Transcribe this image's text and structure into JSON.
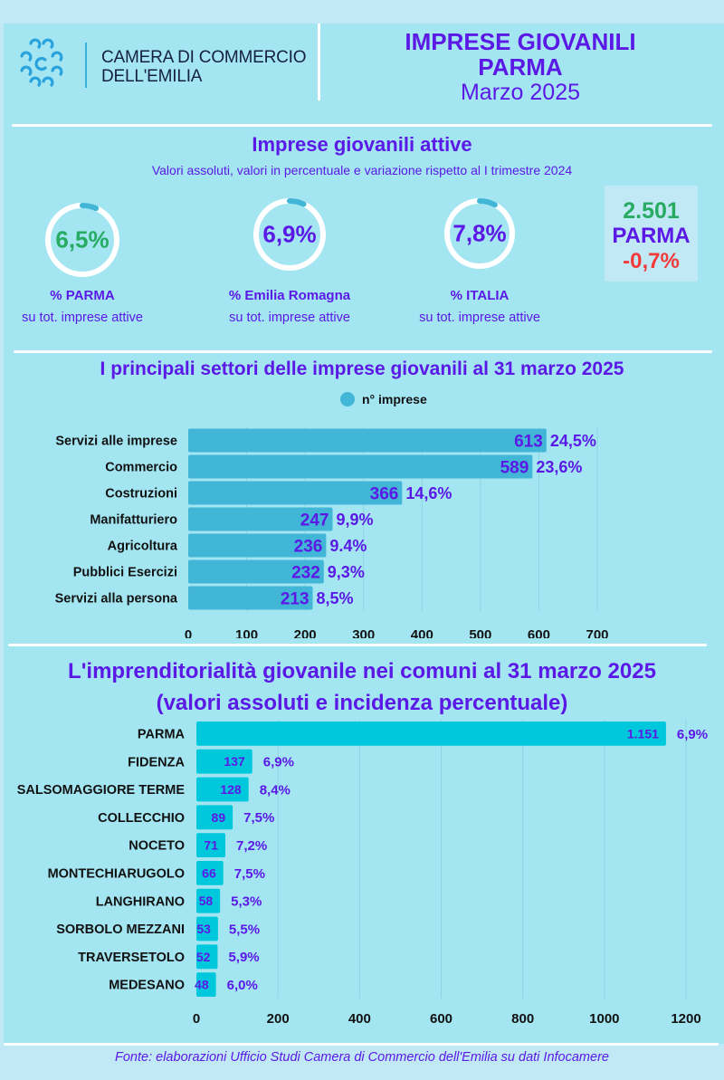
{
  "header": {
    "org_line1": "CAMERA DI COMMERCIO",
    "org_line2": "DELL'EMILIA",
    "title_line1": "IMPRESE GIOVANILI",
    "title_line2": "PARMA",
    "title_line3": "Marzo 2025",
    "logo_icon": "camera-di-commercio-logo"
  },
  "colors": {
    "accent_purple": "#5b19e6",
    "positive_green": "#27ab62",
    "negative_red": "#f23a3a",
    "bar_sectors": "#41b6d6",
    "bar_comuni": "#00c8dc",
    "panel_bg": "#a3e6f2",
    "page_bg": "#c0e9f5"
  },
  "active": {
    "title": "Imprese giovanili attive",
    "subtitle": "Valori assoluti, valori in percentuale e variazione rispetto al I trimestre 2024",
    "donuts": [
      {
        "value": "6,5%",
        "percent": 6.5,
        "label": "%  PARMA",
        "sub": "su tot. imprese attive",
        "color": "#27ab62"
      },
      {
        "value": "6,9%",
        "percent": 6.9,
        "label": "%  Emilia Romagna",
        "sub": "su tot. imprese attive",
        "color": "#5b19e6"
      },
      {
        "value": "7,8%",
        "percent": 7.8,
        "label": "%  ITALIA",
        "sub": "su tot. imprese attive",
        "color": "#5b19e6"
      }
    ],
    "kpi": {
      "count": "2.501",
      "area": "PARMA",
      "variation": "-0,7%"
    }
  },
  "chart_data": [
    {
      "type": "bar",
      "orientation": "horizontal",
      "title": "I principali settori delle imprese giovanili  al 31 marzo 2025",
      "legend": [
        "n° imprese"
      ],
      "legend_position": "top-center",
      "categories": [
        "Servizi alle imprese",
        "Commercio",
        "Costruzioni",
        "Manifatturiero",
        "Agricoltura",
        "Pubblici Esercizi",
        "Servizi alla persona"
      ],
      "values": [
        613,
        589,
        366,
        247,
        236,
        232,
        213
      ],
      "value_labels": [
        "613",
        "589",
        "366",
        "247",
        "236",
        "232",
        "213"
      ],
      "percent_labels": [
        "24,5%",
        "23,6%",
        "14,6%",
        "9,9%",
        "9.4%",
        "9,3%",
        "8,5%"
      ],
      "xlim": [
        0,
        700
      ],
      "xticks": [
        0,
        100,
        200,
        300,
        400,
        500,
        600,
        700
      ],
      "grid": true,
      "xlabel": "",
      "ylabel": ""
    },
    {
      "type": "bar",
      "orientation": "horizontal",
      "title": "L'imprenditorialità giovanile nei comuni  al 31 marzo 2025",
      "subtitle": "(valori assoluti e incidenza percentuale)",
      "categories": [
        "PARMA",
        "FIDENZA",
        "SALSOMAGGIORE TERME",
        "COLLECCHIO",
        "NOCETO",
        "MONTECHIARUGOLO",
        "LANGHIRANO",
        "SORBOLO MEZZANI",
        "TRAVERSETOLO",
        "MEDESANO"
      ],
      "values": [
        1151,
        137,
        128,
        89,
        71,
        66,
        58,
        53,
        52,
        48
      ],
      "value_labels": [
        "1.151",
        "137",
        "128",
        "89",
        "71",
        "66",
        "58",
        "53",
        "52",
        "48"
      ],
      "percent_labels": [
        "6,9%",
        "6,9%",
        "8,4%",
        "7,5%",
        "7,2%",
        "7,5%",
        "5,3%",
        "5,5%",
        "5,9%",
        "6,0%"
      ],
      "xlim": [
        0,
        1200
      ],
      "xticks": [
        0,
        200,
        400,
        600,
        800,
        1000,
        1200
      ],
      "grid": true,
      "xlabel": "",
      "ylabel": ""
    }
  ],
  "footer": {
    "source": "Fonte: elaborazioni Ufficio Studi Camera di Commercio  dell'Emilia su dati Infocamere"
  }
}
